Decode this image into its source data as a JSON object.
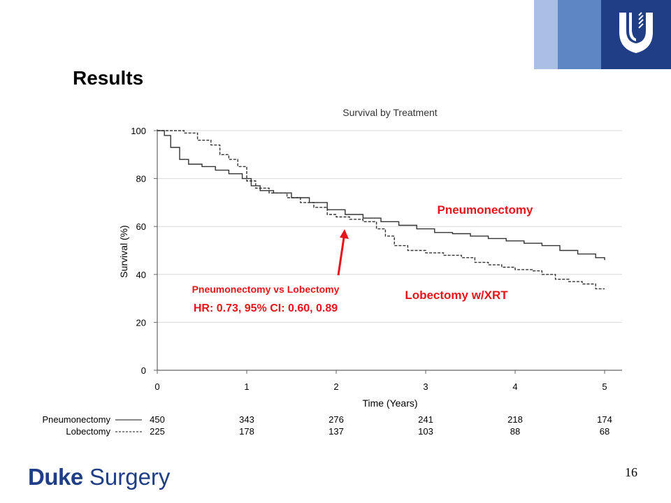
{
  "slide": {
    "title": "Results",
    "page_number": "16",
    "logo_bold": "Duke",
    "logo_regular": "Surgery",
    "brand_colors": {
      "light": "#a9bfe3",
      "mid": "#5f86c4",
      "dark": "#1f3e86",
      "annotation": "#e8141c"
    }
  },
  "chart_data": {
    "type": "line",
    "title": "Survival by Treatment",
    "xlabel": "Time (Years)",
    "ylabel": "Survival (%)",
    "xlim": [
      0,
      5
    ],
    "ylim": [
      0,
      100
    ],
    "x_ticks": [
      "0",
      "1",
      "2",
      "3",
      "4",
      "5"
    ],
    "y_ticks": [
      "0",
      "20",
      "40",
      "60",
      "80",
      "100"
    ],
    "grid": true,
    "series": [
      {
        "name": "Pneumonectomy",
        "style": "solid",
        "color": "#333333",
        "points": [
          [
            0,
            100
          ],
          [
            0.08,
            98
          ],
          [
            0.15,
            93
          ],
          [
            0.25,
            88
          ],
          [
            0.35,
            86
          ],
          [
            0.5,
            85
          ],
          [
            0.65,
            83.5
          ],
          [
            0.8,
            82
          ],
          [
            0.95,
            80
          ],
          [
            1.05,
            77
          ],
          [
            1.15,
            75
          ],
          [
            1.3,
            74
          ],
          [
            1.5,
            72
          ],
          [
            1.7,
            70
          ],
          [
            1.9,
            67
          ],
          [
            2.1,
            65
          ],
          [
            2.3,
            63.5
          ],
          [
            2.5,
            62
          ],
          [
            2.7,
            60.5
          ],
          [
            2.9,
            59
          ],
          [
            3.1,
            57.5
          ],
          [
            3.3,
            57
          ],
          [
            3.5,
            56
          ],
          [
            3.7,
            55
          ],
          [
            3.9,
            54
          ],
          [
            4.1,
            53
          ],
          [
            4.3,
            52
          ],
          [
            4.5,
            50
          ],
          [
            4.7,
            48.5
          ],
          [
            4.9,
            47
          ],
          [
            5.0,
            46
          ]
        ]
      },
      {
        "name": "Lobectomy",
        "style": "dashed",
        "color": "#333333",
        "points": [
          [
            0,
            100
          ],
          [
            0.15,
            100
          ],
          [
            0.3,
            99
          ],
          [
            0.45,
            96
          ],
          [
            0.6,
            94
          ],
          [
            0.7,
            90
          ],
          [
            0.8,
            88
          ],
          [
            0.9,
            85
          ],
          [
            1.0,
            79
          ],
          [
            1.1,
            76
          ],
          [
            1.25,
            74
          ],
          [
            1.45,
            72
          ],
          [
            1.6,
            70
          ],
          [
            1.75,
            68
          ],
          [
            1.9,
            65
          ],
          [
            2.0,
            64
          ],
          [
            2.15,
            63
          ],
          [
            2.3,
            62
          ],
          [
            2.45,
            59
          ],
          [
            2.55,
            56
          ],
          [
            2.65,
            52
          ],
          [
            2.8,
            50
          ],
          [
            3.0,
            49
          ],
          [
            3.2,
            48
          ],
          [
            3.4,
            47
          ],
          [
            3.55,
            45
          ],
          [
            3.7,
            44
          ],
          [
            3.85,
            43
          ],
          [
            4.0,
            42
          ],
          [
            4.2,
            41.5
          ],
          [
            4.3,
            40
          ],
          [
            4.45,
            38
          ],
          [
            4.6,
            37
          ],
          [
            4.75,
            36
          ],
          [
            4.9,
            34
          ],
          [
            5.0,
            34
          ]
        ]
      }
    ],
    "annotations": {
      "pneumonectomy_label": "Pneumonectomy",
      "lobectomy_label": "Lobectomy w/XRT",
      "comparison_label": "Pneumonectomy vs Lobectomy",
      "hr_label": "HR: 0.73, 95% CI: 0.60, 0.89"
    },
    "risk_table": {
      "rows": [
        {
          "label": "Pneumonectomy",
          "style": "solid",
          "values": [
            "450",
            "343",
            "276",
            "241",
            "218",
            "174"
          ]
        },
        {
          "label": "Lobectomy",
          "style": "dashed",
          "values": [
            "225",
            "178",
            "137",
            "103",
            "88",
            "68"
          ]
        }
      ]
    }
  }
}
